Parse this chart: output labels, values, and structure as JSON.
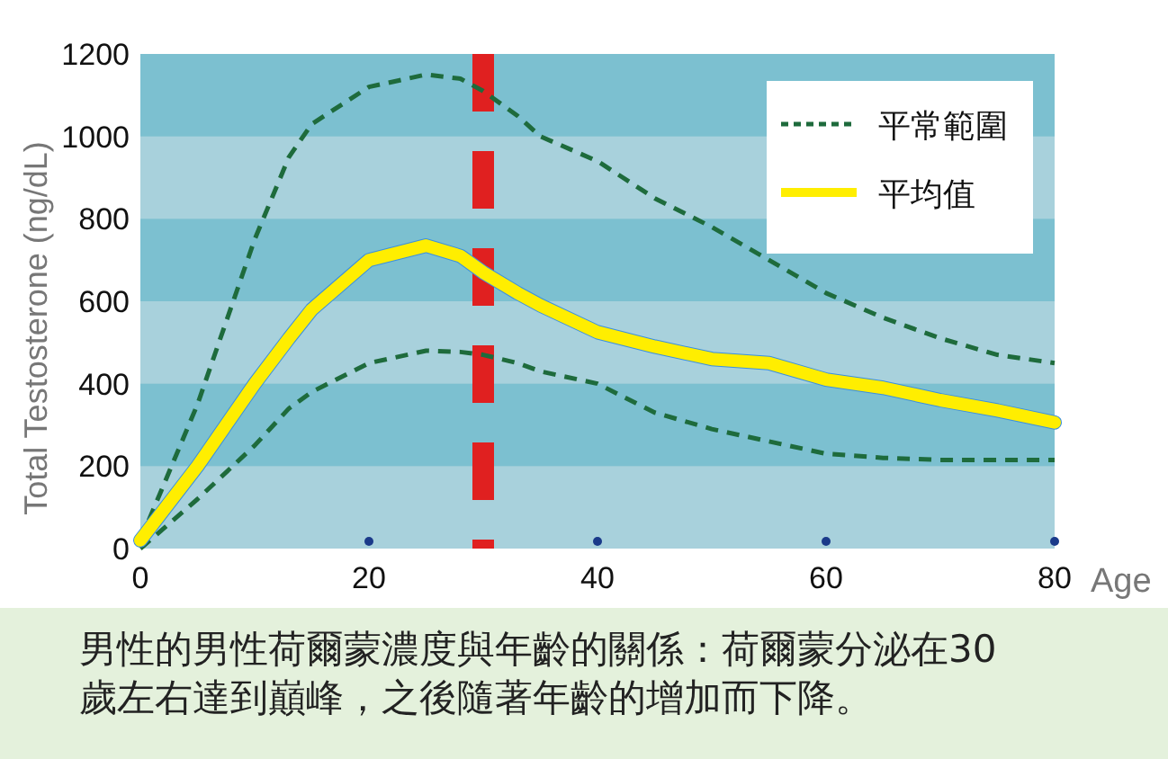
{
  "chart_data": {
    "type": "line",
    "xlabel": "Age",
    "ylabel": "Total Testosterone (ng/dL)",
    "xlim": [
      0,
      80
    ],
    "xticks": [
      0,
      20,
      40,
      60,
      80
    ],
    "ylim": [
      0,
      1200
    ],
    "yticks": [
      0,
      200,
      400,
      600,
      800,
      1000,
      1200
    ],
    "legend": "top right",
    "bands": [
      {
        "axis": "y",
        "from": 200,
        "to": 400,
        "color": "#7cc0d0"
      },
      {
        "axis": "y",
        "from": 600,
        "to": 800,
        "color": "#7cc0d0"
      },
      {
        "axis": "y",
        "from": 1000,
        "to": 1200,
        "color": "#7cc0d0"
      }
    ],
    "x": [
      0,
      5,
      10,
      13,
      15,
      20,
      25,
      28,
      30,
      33,
      35,
      40,
      45,
      50,
      55,
      60,
      65,
      70,
      75,
      80
    ],
    "series": [
      {
        "name": "平常範圍",
        "color": "#1e6b3c",
        "line_style": "dashed",
        "values": [
          20,
          350,
          750,
          950,
          1030,
          1120,
          1150,
          1140,
          1110,
          1050,
          1000,
          940,
          850,
          780,
          700,
          620,
          560,
          510,
          470,
          450
        ]
      },
      {
        "color": "#1e6b3c",
        "line_style": "dashed",
        "values": [
          0,
          120,
          250,
          340,
          380,
          450,
          480,
          477,
          470,
          450,
          430,
          400,
          330,
          290,
          260,
          230,
          220,
          215,
          215,
          215
        ]
      },
      {
        "name": "平均值",
        "color": "#ffee00",
        "line_style": "solid",
        "values": [
          20,
          200,
          400,
          510,
          580,
          700,
          735,
          710,
          670,
          620,
          590,
          525,
          490,
          460,
          450,
          410,
          390,
          360,
          335,
          306
        ]
      }
    ],
    "ref_lines": [
      {
        "axis": "x",
        "value": 30,
        "color": "#e02020",
        "line_style": "dashed"
      }
    ],
    "annotations": [
      "男性的男性荷爾蒙濃度與年齡的關係：荷爾蒙分泌在30歲左右達到巔峰，之後隨著年齡的增加而下降。"
    ]
  }
}
